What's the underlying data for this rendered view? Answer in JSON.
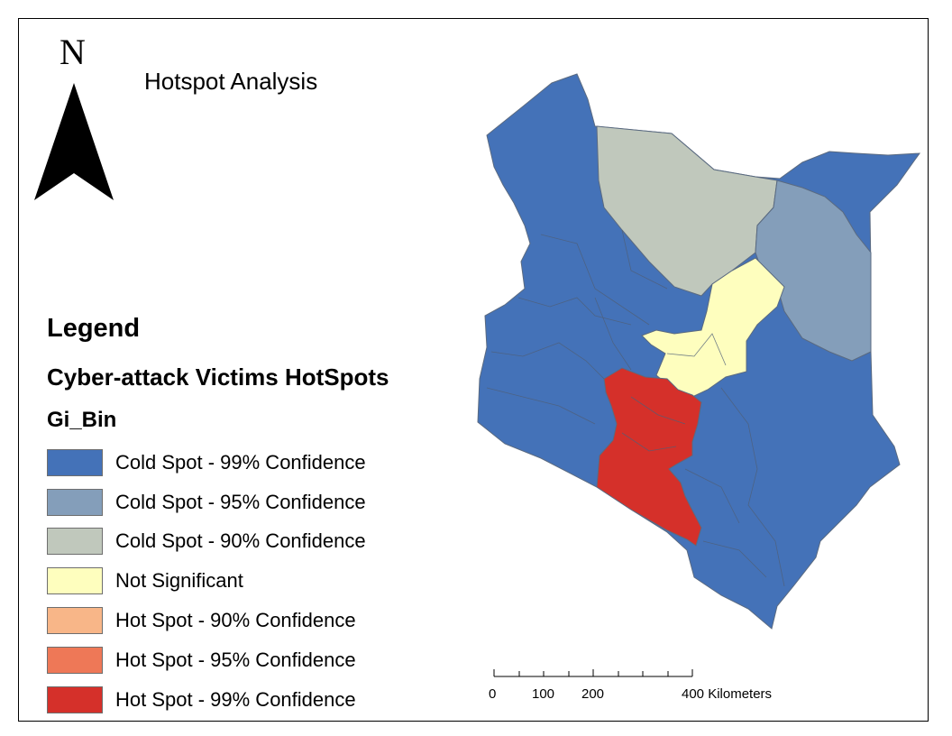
{
  "title": "Hotspot Analysis",
  "north_arrow": {
    "label": "N"
  },
  "legend": {
    "heading": "Legend",
    "layer": "Cyber-attack Victims HotSpots",
    "field": "Gi_Bin",
    "items": [
      {
        "label": "Cold Spot - 99% Confidence",
        "color": "#4472b8"
      },
      {
        "label": "Cold Spot - 95% Confidence",
        "color": "#849eba"
      },
      {
        "label": "Cold Spot - 90% Confidence",
        "color": "#c0c8bc"
      },
      {
        "label": "Not Significant",
        "color": "#fefebe"
      },
      {
        "label": "Hot Spot - 90% Confidence",
        "color": "#f8b688"
      },
      {
        "label": "Hot Spot - 95% Confidence",
        "color": "#ee7857"
      },
      {
        "label": "Hot Spot - 99% Confidence",
        "color": "#d5302a"
      }
    ]
  },
  "scale_bar": {
    "labels": [
      "0",
      "100",
      "200",
      "400 Kilometers"
    ]
  },
  "colors": {
    "cold99": "#4472b8",
    "cold95": "#849eba",
    "cold90": "#c0c8bc",
    "not_significant": "#fefebe",
    "hot99": "#d5302a",
    "boundary": "#5a6a80"
  }
}
